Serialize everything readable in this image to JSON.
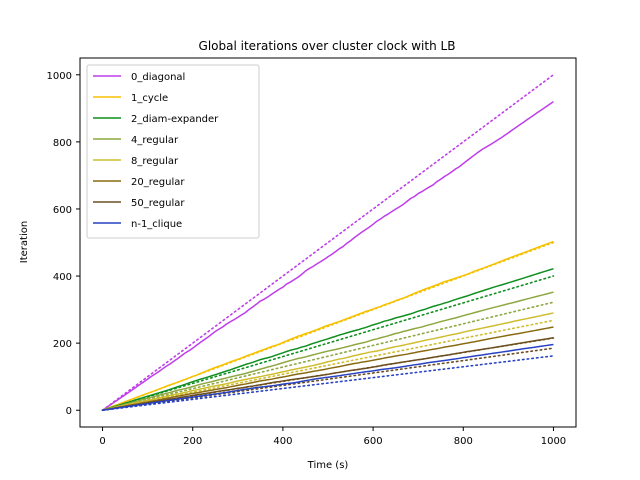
{
  "chart_data": {
    "type": "line",
    "title": "Global iterations over cluster clock with LB",
    "xlabel": "Time (s)",
    "ylabel": "Iteration",
    "xlim": [
      -50,
      1050
    ],
    "ylim": [
      -50,
      1050
    ],
    "xticks": [
      0,
      200,
      400,
      600,
      800,
      1000
    ],
    "yticks": [
      0,
      200,
      400,
      600,
      800,
      1000
    ],
    "legend_position": "upper-left",
    "series": [
      {
        "name": "0_diagonal",
        "color": "#bf3eea",
        "final_solid": 920,
        "final_dotted": 1000,
        "noise": 10
      },
      {
        "name": "1_cycle",
        "color": "#f5c100",
        "final_solid": 503,
        "final_dotted": 500,
        "noise": 4
      },
      {
        "name": "2_diam-expander",
        "color": "#0f8f1f",
        "final_solid": 422,
        "final_dotted": 400,
        "noise": 4
      },
      {
        "name": "4_regular",
        "color": "#8ea841",
        "final_solid": 352,
        "final_dotted": 322,
        "noise": 3
      },
      {
        "name": "8_regular",
        "color": "#cfbd2f",
        "final_solid": 290,
        "final_dotted": 268,
        "noise": 3
      },
      {
        "name": "20_regular",
        "color": "#8a6b14",
        "final_solid": 248,
        "final_dotted": 215,
        "noise": 2
      },
      {
        "name": "50_regular",
        "color": "#6a4e22",
        "final_solid": 216,
        "final_dotted": 185,
        "noise": 2
      },
      {
        "name": "n-1_clique",
        "color": "#2741c4",
        "final_solid": 196,
        "final_dotted": 162,
        "noise": 2
      }
    ]
  }
}
